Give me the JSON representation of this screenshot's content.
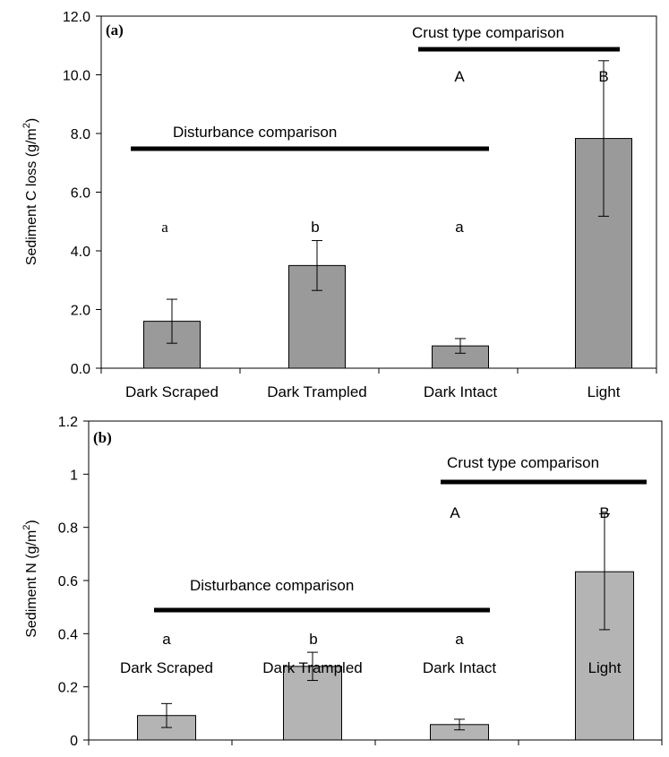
{
  "chart_data": [
    {
      "type": "bar",
      "panel_label": "(a)",
      "ylabel": "Sediment C loss (g/m",
      "ylabel_sup": "2",
      "ylabel_end": ")",
      "ylim": [
        0,
        12
      ],
      "yticks": [
        "0.0",
        "2.0",
        "4.0",
        "6.0",
        "8.0",
        "10.0",
        "12.0"
      ],
      "ytick_values": [
        0,
        2,
        4,
        6,
        8,
        10,
        12
      ],
      "categories": [
        "Dark Scraped",
        "Dark Trampled",
        "Dark Intact",
        "Light"
      ],
      "values": [
        1.6,
        3.5,
        0.76,
        7.83
      ],
      "errors": [
        0.75,
        0.85,
        0.25,
        2.65
      ],
      "bar_color": "#9a9a9a",
      "letters": [
        "a",
        "b",
        "a",
        "B"
      ],
      "upper_letters": [
        "A",
        "B"
      ],
      "disturbance_label": "Disturbance comparison",
      "crust_label": "Crust type comparison"
    },
    {
      "type": "bar",
      "panel_label": "(b)",
      "ylabel": "Sediment N (g/m",
      "ylabel_sup": "2",
      "ylabel_end": ")",
      "ylim": [
        0,
        1.2
      ],
      "yticks": [
        "0",
        "0.2",
        "0.4",
        "0.6",
        "0.8",
        "1",
        "1.2"
      ],
      "ytick_values": [
        0,
        0.2,
        0.4,
        0.6,
        0.8,
        1.0,
        1.2
      ],
      "categories": [
        "Dark Scraped",
        "Dark Trampled",
        "Dark Intact",
        "Light"
      ],
      "values": [
        0.092,
        0.277,
        0.058,
        0.633
      ],
      "errors": [
        0.045,
        0.053,
        0.02,
        0.218
      ],
      "bar_color": "#b4b4b4",
      "letters": [
        "a",
        "b",
        "a",
        "B"
      ],
      "upper_letters": [
        "A",
        "B"
      ],
      "disturbance_label": "Disturbance comparison",
      "crust_label": "Crust type comparison"
    }
  ]
}
